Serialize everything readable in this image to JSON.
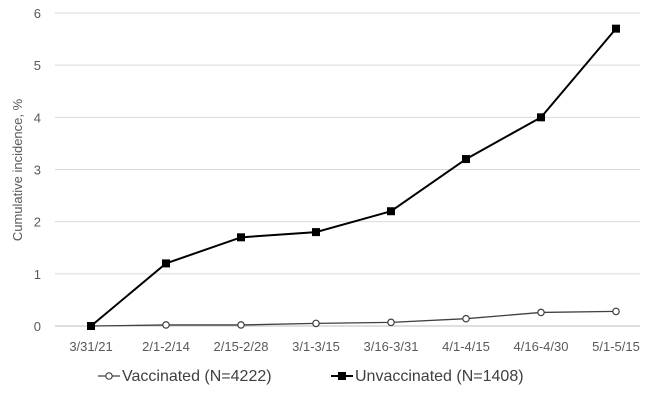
{
  "chart_data": {
    "type": "line",
    "title": "",
    "xlabel": "",
    "ylabel": "Cumulative incidence, %",
    "categories": [
      "3/31/21",
      "2/1-2/14",
      "2/15-2/28",
      "3/1-3/15",
      "3/16-3/31",
      "4/1-4/15",
      "4/16-4/30",
      "5/1-5/15"
    ],
    "ylim": [
      0,
      6
    ],
    "yticks": [
      "0",
      "1",
      "2",
      "3",
      "4",
      "5",
      "6"
    ],
    "grid": "horizontal",
    "legend": "bottom",
    "series": [
      {
        "name": "Vaccinated (N=4222)",
        "marker": "open-circle",
        "color": "#404040",
        "values": [
          0,
          0.02,
          0.02,
          0.05,
          0.07,
          0.14,
          0.26,
          0.28
        ]
      },
      {
        "name": "Unvaccinated (N=1408)",
        "marker": "filled-square",
        "color": "#000000",
        "values": [
          0,
          1.2,
          1.7,
          1.8,
          2.2,
          3.2,
          4.0,
          5.7
        ]
      }
    ]
  }
}
